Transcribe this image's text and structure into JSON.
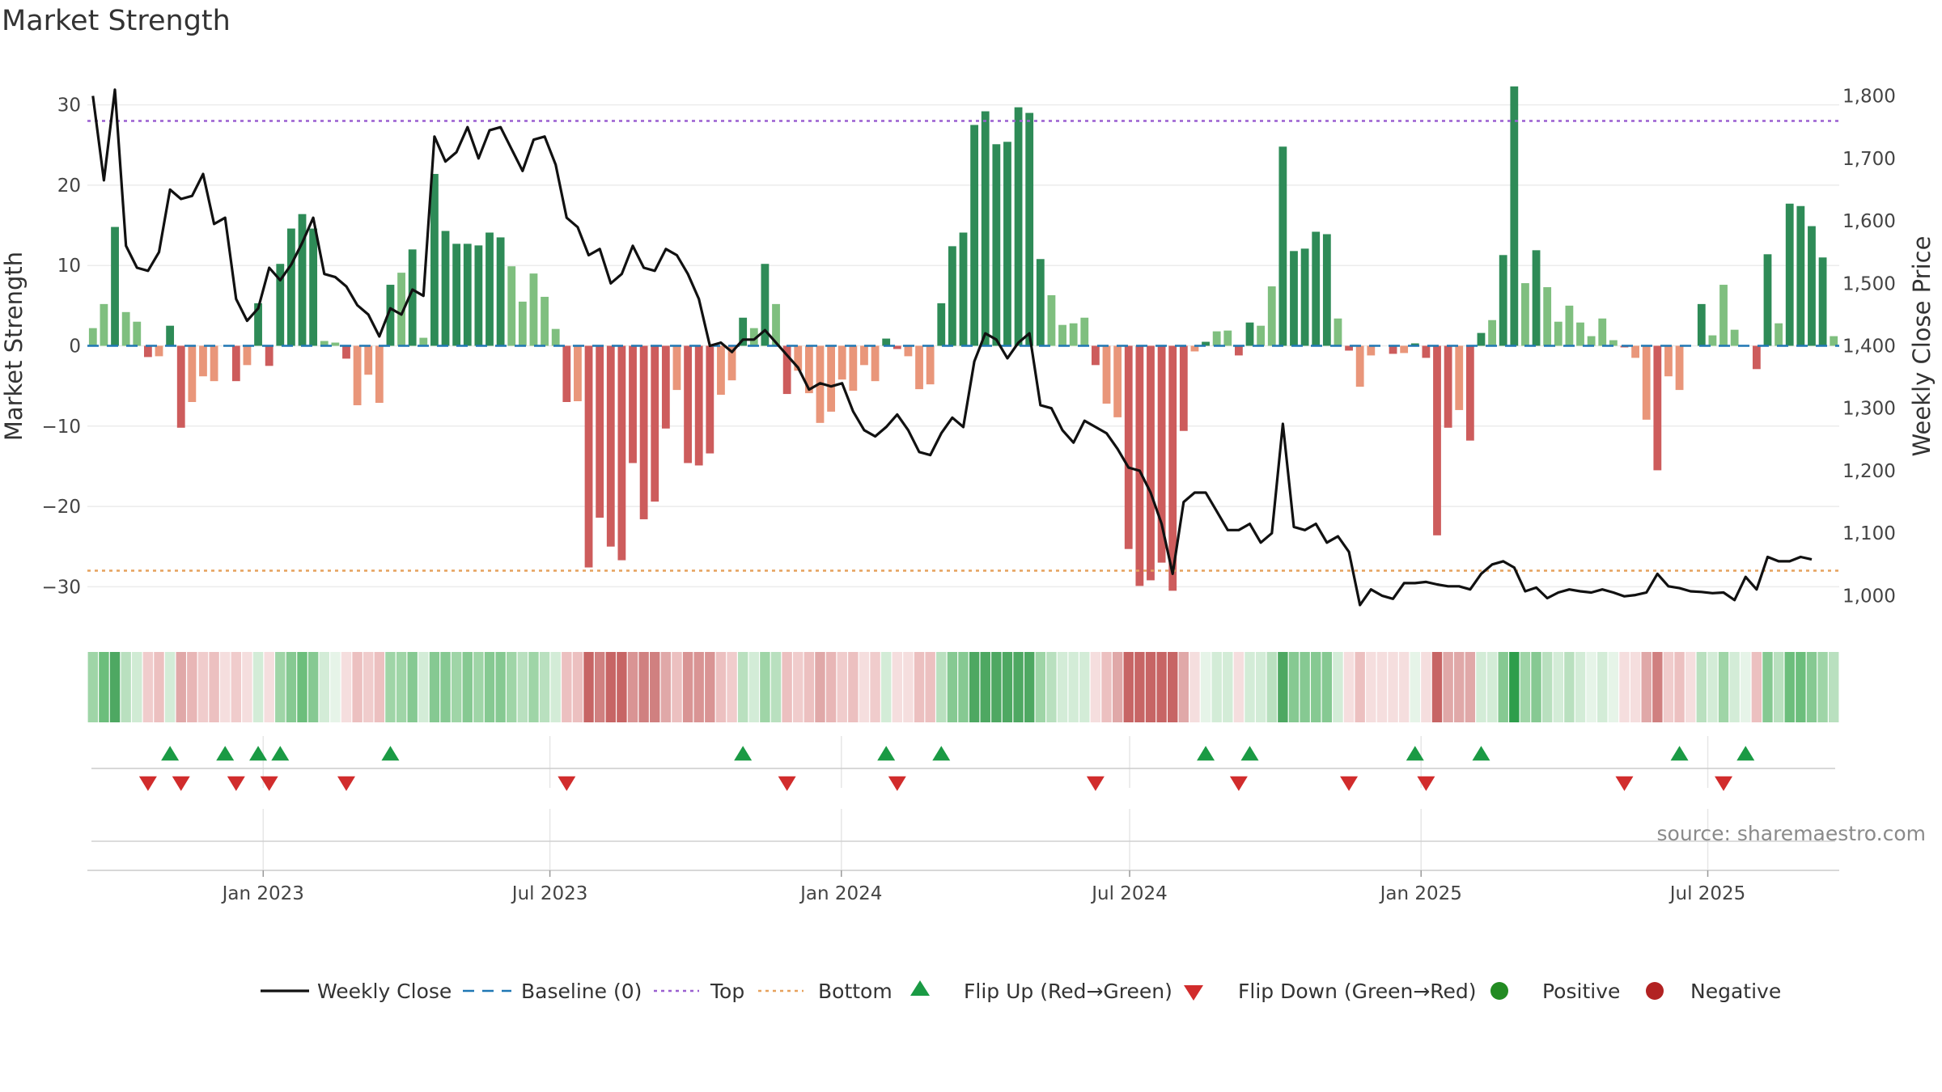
{
  "chart_data": {
    "type": "bar",
    "title": "Market Strength",
    "ylabel_left": "Market Strength",
    "ylabel_right": "Weekly Close Price",
    "ylim_left": [
      -35,
      35
    ],
    "ylim_right": [
      950,
      1850
    ],
    "yticks_left": [
      30,
      20,
      10,
      0,
      -10,
      -20,
      -30
    ],
    "yticks_left_labels": [
      "30",
      "20",
      "10",
      "0",
      "−10",
      "−20",
      "−30"
    ],
    "yticks_right": [
      1800,
      1700,
      1600,
      1500,
      1400,
      1300,
      1200,
      1100,
      1000
    ],
    "yticks_right_labels": [
      "1,800",
      "1,700",
      "1,600",
      "1,500",
      "1,400",
      "1,300",
      "1,200",
      "1,100",
      "1,000"
    ],
    "x_start": "2022-09-12",
    "x_end": "2025-09-22",
    "xticks": [
      {
        "date": "2023-01-01",
        "label": "Jan 2023"
      },
      {
        "date": "2023-07-01",
        "label": "Jul 2023"
      },
      {
        "date": "2024-01-01",
        "label": "Jan 2024"
      },
      {
        "date": "2024-07-01",
        "label": "Jul 2024"
      },
      {
        "date": "2025-01-01",
        "label": "Jan 2025"
      },
      {
        "date": "2025-07-01",
        "label": "Jul 2025"
      }
    ],
    "top_level": 28.0,
    "bottom_level": -28.0,
    "baseline": 0,
    "strength": [
      2.2,
      5.2,
      14.8,
      4.2,
      3.0,
      -1.4,
      -1.3,
      2.5,
      -10.2,
      -7.0,
      -3.8,
      -4.4,
      0.0,
      -4.4,
      -2.4,
      5.3,
      -2.5,
      10.2,
      14.6,
      16.4,
      14.6,
      0.6,
      0.4,
      -1.6,
      -7.4,
      -3.6,
      -7.1,
      7.6,
      9.1,
      12.0,
      1.0,
      21.4,
      14.3,
      12.7,
      12.7,
      12.5,
      14.1,
      13.5,
      9.9,
      5.5,
      9.0,
      6.1,
      2.1,
      -7.0,
      -6.9,
      -27.6,
      -21.4,
      -25.0,
      -26.7,
      -14.6,
      -21.6,
      -19.4,
      -10.3,
      -5.5,
      -14.6,
      -14.9,
      -13.4,
      -6.1,
      -4.3,
      3.5,
      2.2,
      10.2,
      5.2,
      -6.0,
      -3.1,
      -5.9,
      -9.6,
      -8.2,
      -4.2,
      -5.6,
      -2.4,
      -4.4,
      0.9,
      -0.4,
      -1.3,
      -5.4,
      -4.8,
      5.3,
      12.4,
      14.1,
      27.5,
      29.2,
      25.1,
      25.4,
      29.7,
      29.0,
      10.8,
      6.3,
      2.6,
      2.8,
      3.5,
      -2.4,
      -7.2,
      -8.9,
      -25.3,
      -29.9,
      -29.2,
      -27.0,
      -30.5,
      -10.6,
      -0.7,
      0.5,
      1.8,
      1.9,
      -1.2,
      2.9,
      2.5,
      7.4,
      24.8,
      11.8,
      12.1,
      14.2,
      13.9,
      3.4,
      -0.6,
      -5.1,
      -1.2,
      0.0,
      -1.0,
      -0.9,
      0.3,
      -1.5,
      -23.6,
      -10.2,
      -8.0,
      -11.8,
      1.6,
      3.2,
      11.3,
      32.3,
      7.8,
      11.9,
      7.3,
      3.0,
      5.0,
      2.9,
      1.2,
      3.4,
      0.7,
      -0.2,
      -1.5,
      -9.2,
      -15.5,
      -3.8,
      -5.5,
      0.0,
      5.2,
      1.3,
      7.6,
      2.0,
      0.0,
      -2.9,
      11.4,
      2.8,
      17.7,
      17.4,
      14.9,
      11.0,
      1.2
    ],
    "price": [
      1800,
      1665,
      1810,
      1560,
      1525,
      1520,
      1550,
      1650,
      1635,
      1640,
      1675,
      1595,
      1605,
      1475,
      1440,
      1460,
      1525,
      1505,
      1530,
      1565,
      1605,
      1515,
      1510,
      1495,
      1465,
      1450,
      1415,
      1460,
      1450,
      1490,
      1480,
      1735,
      1695,
      1710,
      1750,
      1700,
      1745,
      1750,
      1715,
      1680,
      1730,
      1735,
      1690,
      1605,
      1590,
      1545,
      1555,
      1500,
      1515,
      1560,
      1525,
      1520,
      1555,
      1545,
      1515,
      1475,
      1400,
      1405,
      1390,
      1410,
      1410,
      1425,
      1405,
      1385,
      1365,
      1330,
      1340,
      1335,
      1340,
      1295,
      1265,
      1255,
      1270,
      1290,
      1265,
      1230,
      1225,
      1260,
      1285,
      1270,
      1375,
      1420,
      1410,
      1380,
      1405,
      1420,
      1305,
      1300,
      1265,
      1245,
      1280,
      1270,
      1260,
      1235,
      1205,
      1200,
      1165,
      1115,
      1035,
      1150,
      1165,
      1165,
      1135,
      1105,
      1105,
      1115,
      1085,
      1100,
      1275,
      1110,
      1105,
      1115,
      1085,
      1095,
      1070,
      985,
      1010,
      1000,
      995,
      1020,
      1020,
      1022,
      1018,
      1015,
      1015,
      1010,
      1035,
      1050,
      1055,
      1045,
      1007,
      1013,
      996,
      1005,
      1010,
      1007,
      1005,
      1010,
      1005,
      999,
      1001,
      1005,
      1035,
      1015,
      1012,
      1007,
      1006,
      1004,
      1005,
      993,
      1030,
      1010,
      1062,
      1055,
      1055,
      1062,
      1058
    ],
    "flip_up_index": [
      7,
      12,
      15,
      17,
      27,
      59,
      72,
      77,
      101,
      105,
      120,
      126,
      144,
      150
    ],
    "flip_down_index": [
      5,
      8,
      13,
      16,
      23,
      43,
      63,
      73,
      91,
      104,
      114,
      121,
      139,
      148
    ],
    "strip_colors": [
      "#9fd5a7",
      "#6cbe7c",
      "#4ea862",
      "#b9e0bf",
      "#d0ebd4",
      "#f0cccc",
      "#ecc0c0",
      "#d3ecd7",
      "#e0a8a8",
      "#e8b6b6",
      "#f0cccc",
      "#ecc0c0",
      "#f5dede",
      "#f0cccc",
      "#f5dede",
      "#d3ecd7",
      "#f5dede",
      "#9fd5a7",
      "#86c992",
      "#6cbe7c",
      "#86c992",
      "#d3ecd7",
      "#e6f4e8",
      "#f5dede",
      "#ecc0c0",
      "#f0cccc",
      "#ecc0c0",
      "#9fd5a7",
      "#9fd5a7",
      "#86c992",
      "#d3ecd7",
      "#86c992",
      "#86c992",
      "#9fd5a7",
      "#86c992",
      "#9fd5a7",
      "#86c992",
      "#86c992",
      "#9fd5a7",
      "#b9e0bf",
      "#9fd5a7",
      "#b9e0bf",
      "#d3ecd7",
      "#ecc0c0",
      "#ecc0c0",
      "#c76565",
      "#d08080",
      "#c76565",
      "#c76565",
      "#d99494",
      "#d08080",
      "#d08080",
      "#e0a8a8",
      "#ecc0c0",
      "#d99494",
      "#d99494",
      "#d99494",
      "#ecc0c0",
      "#f0cccc",
      "#b9e0bf",
      "#d3ecd7",
      "#9fd5a7",
      "#b9e0bf",
      "#ecc0c0",
      "#f0cccc",
      "#ecc0c0",
      "#e0a8a8",
      "#e8b6b6",
      "#f0cccc",
      "#ecc0c0",
      "#f5dede",
      "#f0cccc",
      "#d3ecd7",
      "#f5dede",
      "#f5dede",
      "#ecc0c0",
      "#ecc0c0",
      "#b9e0bf",
      "#86c992",
      "#86c992",
      "#4ea862",
      "#4ea862",
      "#4ea862",
      "#4ea862",
      "#4ea862",
      "#4ea862",
      "#9fd5a7",
      "#b9e0bf",
      "#d3ecd7",
      "#d3ecd7",
      "#d3ecd7",
      "#f5dede",
      "#ecc0c0",
      "#e0a8a8",
      "#c76565",
      "#c76565",
      "#c76565",
      "#c76565",
      "#c76565",
      "#e0a8a8",
      "#f5dede",
      "#e6f4e8",
      "#d3ecd7",
      "#d3ecd7",
      "#f5dede",
      "#d3ecd7",
      "#d3ecd7",
      "#b9e0bf",
      "#4ea862",
      "#86c992",
      "#86c992",
      "#86c992",
      "#86c992",
      "#d3ecd7",
      "#f5dede",
      "#ecc0c0",
      "#f5dede",
      "#f5dede",
      "#f5dede",
      "#f5dede",
      "#e6f4e8",
      "#f5dede",
      "#c76565",
      "#e0a8a8",
      "#e0a8a8",
      "#e0a8a8",
      "#d3ecd7",
      "#d3ecd7",
      "#86c992",
      "#2e9e4b",
      "#9fd5a7",
      "#86c992",
      "#b9e0bf",
      "#d3ecd7",
      "#b9e0bf",
      "#d3ecd7",
      "#e6f4e8",
      "#d3ecd7",
      "#e6f4e8",
      "#f5dede",
      "#f5dede",
      "#e0a8a8",
      "#d08080",
      "#f0cccc",
      "#ecc0c0",
      "#f5dede",
      "#b9e0bf",
      "#d3ecd7",
      "#9fd5a7",
      "#d3ecd7",
      "#e6f4e8",
      "#ecc0c0",
      "#86c992",
      "#b9e0bf",
      "#6cbe7c",
      "#6cbe7c",
      "#86c992",
      "#9fd5a7",
      "#b9e0bf"
    ],
    "colors": {
      "strong_green": "#2e8b57",
      "light_green": "#7fbf7f",
      "strong_red": "#cd5c5c",
      "light_red": "#e9967a",
      "price_line": "#111111",
      "baseline": "#1f77b4",
      "top_line": "#9a5fd0",
      "bottom_line": "#e6a15c",
      "flip_up": "#1a9a44",
      "flip_down": "#d12c2c",
      "positive": "#228b22",
      "negative": "#b22222"
    },
    "legend": [
      {
        "label": "Weekly Close",
        "symbol": "line"
      },
      {
        "label": "Baseline (0)",
        "symbol": "dash"
      },
      {
        "label": "Top",
        "symbol": "dot-purple"
      },
      {
        "label": "Bottom",
        "symbol": "dot-orange"
      },
      {
        "label": "Flip Up (Red→Green)",
        "symbol": "triangle-up"
      },
      {
        "label": "Flip Down (Green→Red)",
        "symbol": "triangle-down"
      },
      {
        "label": "Positive",
        "symbol": "circle-green"
      },
      {
        "label": "Negative",
        "symbol": "circle-red"
      }
    ],
    "legend_position": "bottom-center",
    "source": "source: sharemaestro.com"
  }
}
